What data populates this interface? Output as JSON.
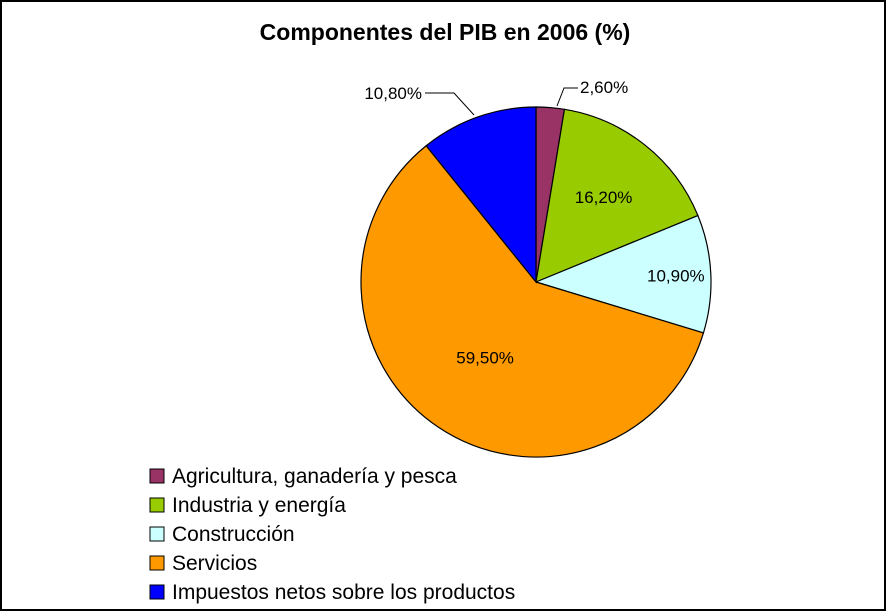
{
  "chart_data": {
    "type": "pie",
    "title": "Componentes del PIB en 2006 (%)",
    "categories": [
      "Agricultura, ganadería y pesca",
      "Industria y energía",
      "Construcción",
      "Servicios",
      "Impuestos netos sobre los productos"
    ],
    "values": [
      2.6,
      16.2,
      10.9,
      59.5,
      10.8
    ],
    "data_labels": [
      "2,60%",
      "16,20%",
      "10,90%",
      "59,50%",
      "10,80%"
    ],
    "colors": [
      "#993366",
      "#99cc00",
      "#ccffff",
      "#ff9900",
      "#0000ff"
    ],
    "start": "top, clockwise",
    "legend_position": "bottom-left"
  }
}
